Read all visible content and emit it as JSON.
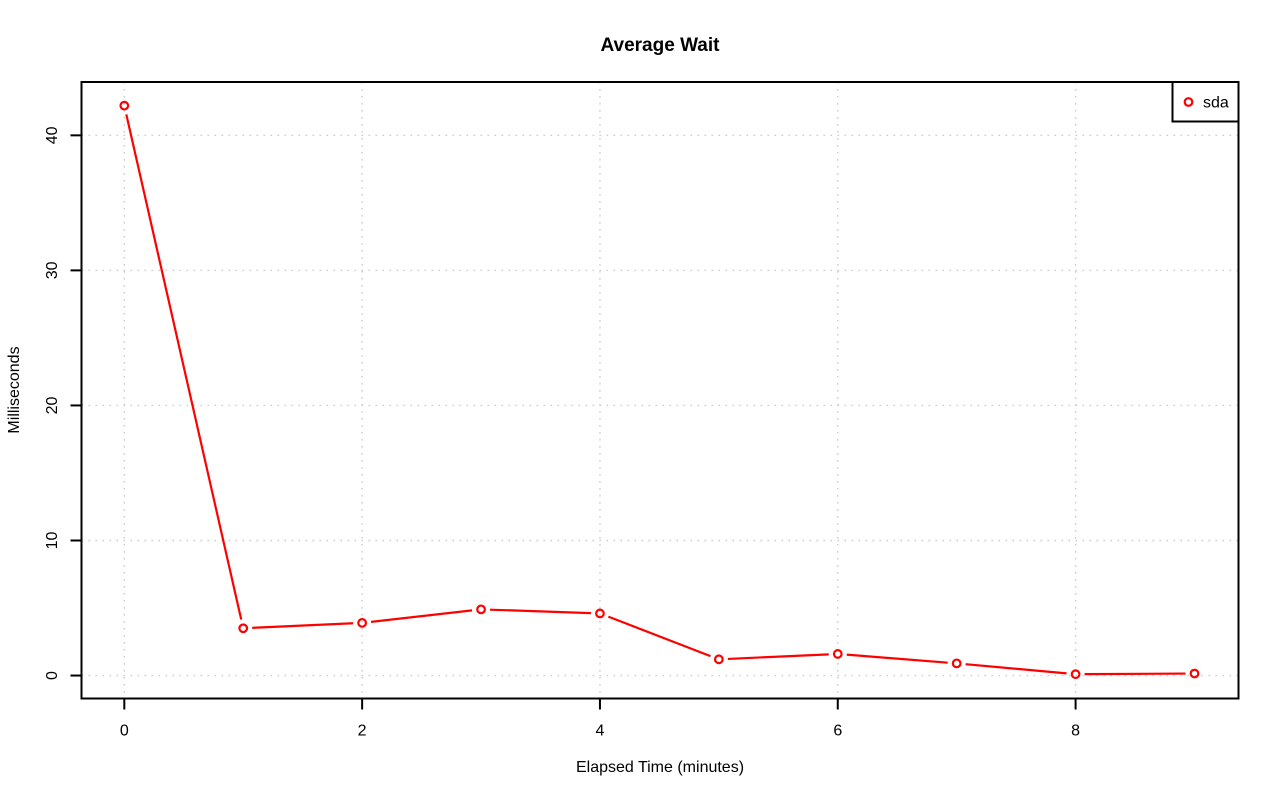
{
  "window": {
    "background_color": "#FFFFFF"
  },
  "chart_data": {
    "type": "line",
    "title": "Average Wait",
    "xlabel": "Elapsed Time (minutes)",
    "ylabel": "Milliseconds",
    "x": [
      0,
      1,
      2,
      3,
      4,
      5,
      6,
      7,
      8,
      9
    ],
    "series": [
      {
        "name": "sda",
        "color": "#FF0000",
        "marker": "open-circle",
        "line_style": "solid-with-marker-gaps",
        "values": [
          42.2,
          3.5,
          3.9,
          4.9,
          4.6,
          1.2,
          1.6,
          0.9,
          0.1,
          0.15
        ]
      }
    ],
    "xticks": [
      0,
      2,
      4,
      6,
      8
    ],
    "yticks": [
      0,
      10,
      20,
      30,
      40
    ],
    "xlim": [
      -0.36,
      9.37
    ],
    "ylim": [
      -1.7,
      43.95
    ],
    "grid": true,
    "grid_style": "dotted",
    "grid_color": "#CDCDCD",
    "axis_color": "#000000",
    "background_color": "#FFFFFF",
    "y_tick_labels_rotated": true,
    "legend_position": "topright",
    "legend": {
      "label": "sda",
      "marker": "open-circle",
      "marker_color": "#FF0000"
    }
  }
}
